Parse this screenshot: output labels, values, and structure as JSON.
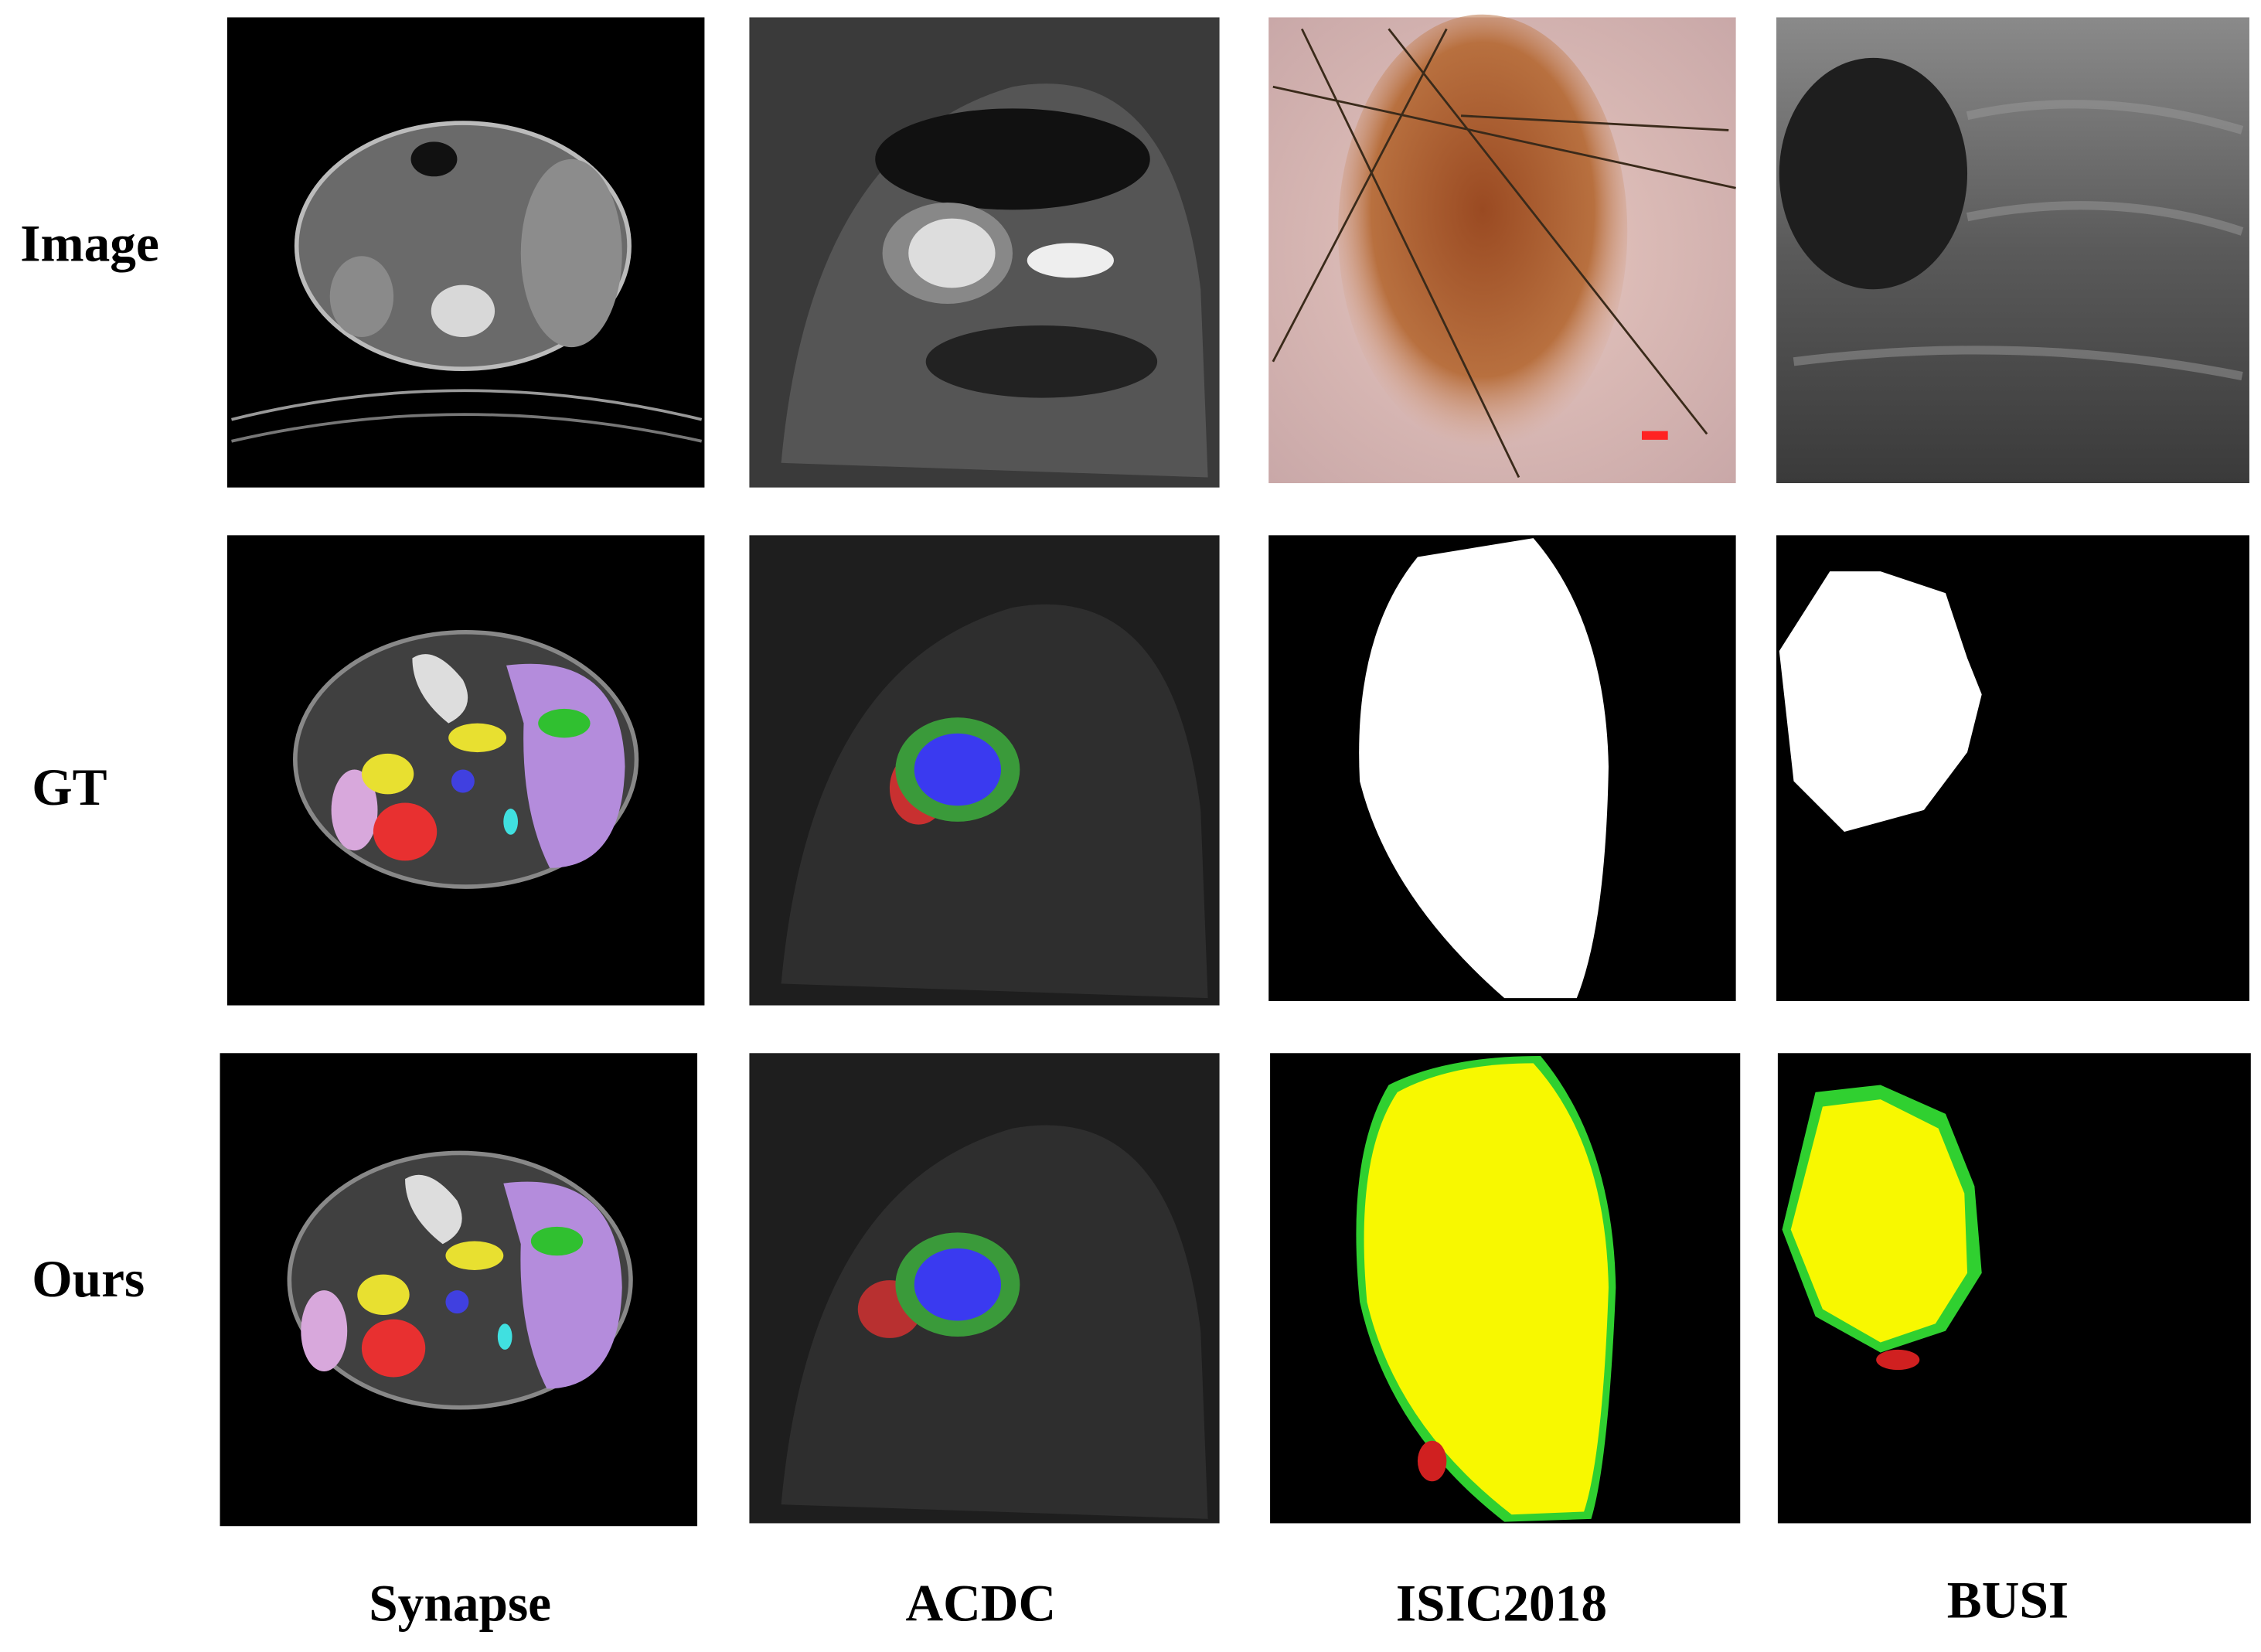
{
  "row_labels": [
    "Image",
    "GT",
    "Ours"
  ],
  "column_labels": [
    "Synapse",
    "ACDC",
    "ISIC2018",
    "BUSI"
  ]
}
